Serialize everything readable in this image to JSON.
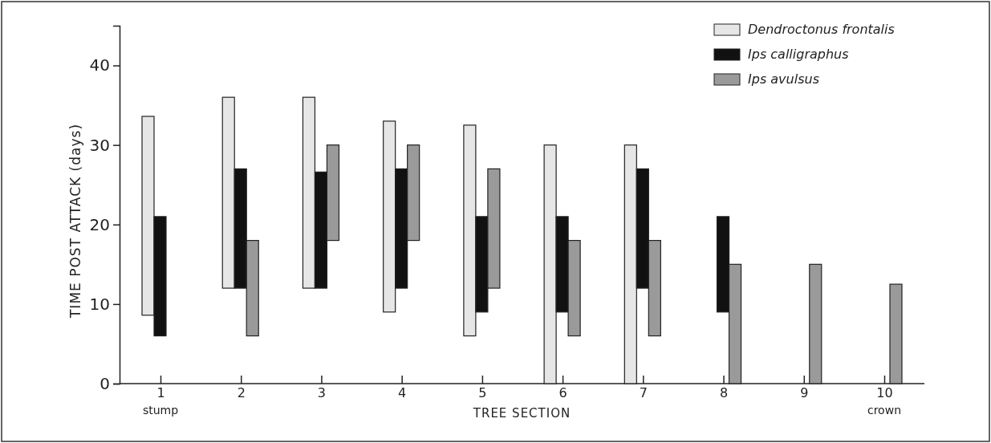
{
  "chart_data": {
    "type": "bar",
    "xlabel": "TREE SECTION",
    "ylabel": "TIME POST ATTACK (days)",
    "categories": [
      "1",
      "2",
      "3",
      "4",
      "5",
      "6",
      "7",
      "8",
      "9",
      "10"
    ],
    "ylim": [
      0,
      45
    ],
    "yticks": [
      0,
      10,
      20,
      30,
      40
    ],
    "grid": false,
    "legend": "top right",
    "annotations": [
      "stump",
      "crown"
    ],
    "series": [
      {
        "name": "Dendroctonus frontalis",
        "color": "#e6e6e6",
        "base": [
          8.6,
          12,
          12,
          9,
          6,
          0,
          0,
          null,
          null,
          null
        ],
        "values": [
          25,
          24,
          24,
          24,
          26.5,
          30,
          30,
          null,
          null,
          null
        ]
      },
      {
        "name": "Ips calligraphus",
        "color": "#111111",
        "base": [
          6,
          12,
          12,
          12,
          9,
          9,
          12,
          9,
          null,
          null
        ],
        "values": [
          15,
          15,
          14.6,
          15,
          12,
          12,
          15,
          12,
          null,
          null
        ]
      },
      {
        "name": "Ips avulsus",
        "color": "#9a9a9a",
        "base": [
          null,
          6,
          18,
          18,
          12,
          6,
          6,
          0,
          0,
          0
        ],
        "values": [
          null,
          12,
          12,
          12,
          15,
          12,
          12,
          15,
          15,
          12.5
        ]
      }
    ]
  }
}
